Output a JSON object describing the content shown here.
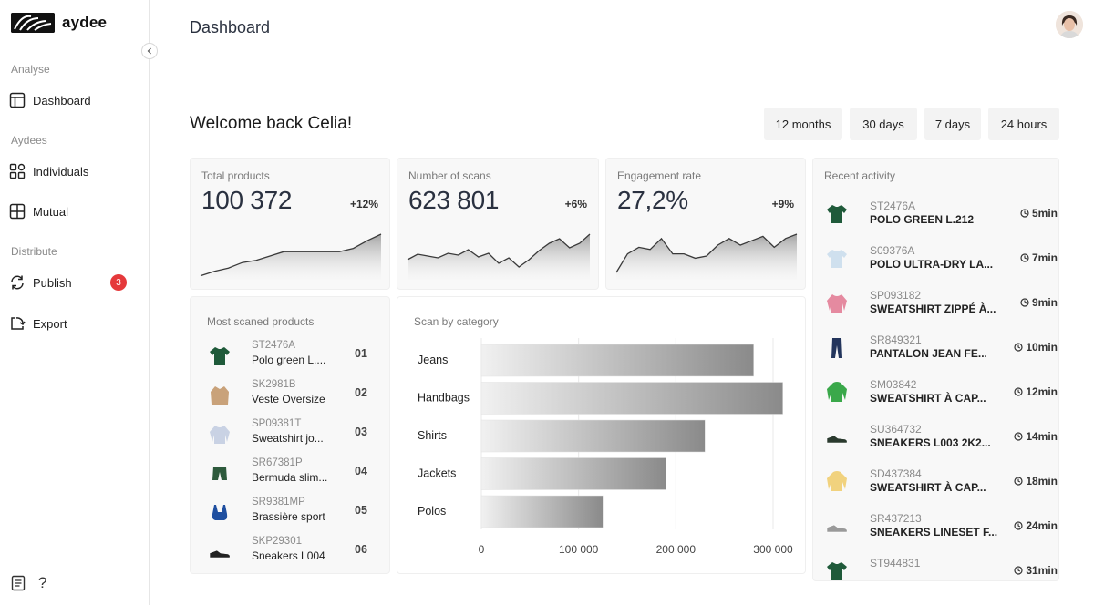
{
  "app": {
    "name": "aydee",
    "page_title": "Dashboard",
    "colors": {
      "accent": "#e5393b",
      "text": "#1f1f1f",
      "card_bg": "#f8f8f8",
      "bar_dark": "#8e8e8e",
      "bar_light": "#ededed"
    }
  },
  "sidebar": {
    "sections": [
      {
        "label": "Analyse",
        "items": [
          {
            "label": "Dashboard",
            "icon": "layout-icon",
            "active": true
          }
        ]
      },
      {
        "label": "Aydees",
        "items": [
          {
            "label": "Individuals",
            "icon": "grid-icon"
          },
          {
            "label": "Mutual",
            "icon": "window-icon"
          }
        ]
      },
      {
        "label": "Distribute",
        "items": [
          {
            "label": "Publish",
            "icon": "refresh-icon",
            "badge": "3"
          },
          {
            "label": "Export",
            "icon": "export-icon"
          }
        ]
      }
    ],
    "bottom_icons": [
      "document-icon",
      "help-icon"
    ],
    "help_glyph": "?"
  },
  "main": {
    "welcome": "Welcome back Celia!",
    "ranges": [
      "12 months",
      "30 days",
      "7 days",
      "24 hours"
    ],
    "kpis": [
      {
        "label": "Total products",
        "value": "100 372",
        "delta": "+12%"
      },
      {
        "label": "Number of scans",
        "value": "623 801",
        "delta": "+6%"
      },
      {
        "label": "Engagement rate",
        "value": "27,2%",
        "delta": "+9%"
      }
    ],
    "most_scanned": {
      "title": "Most scaned products",
      "items": [
        {
          "code": "ST2476A",
          "name": "Polo green L....",
          "rank": "01",
          "icon": "polo-icon",
          "color": "#1f5a3a"
        },
        {
          "code": "SK2981B",
          "name": "Veste Oversize",
          "rank": "02",
          "icon": "jacket-icon",
          "color": "#c9a27a"
        },
        {
          "code": "SP09381T",
          "name": "Sweatshirt jo...",
          "rank": "03",
          "icon": "sweatshirt-icon",
          "color": "#c9d2e4"
        },
        {
          "code": "SR67381P",
          "name": "Bermuda slim...",
          "rank": "04",
          "icon": "shorts-icon",
          "color": "#2d5a3c"
        },
        {
          "code": "SR9381MP",
          "name": "Brassière sport",
          "rank": "05",
          "icon": "bra-icon",
          "color": "#1f4fa0"
        },
        {
          "code": "SKP29301",
          "name": "Sneakers L004",
          "rank": "06",
          "icon": "sneaker-icon",
          "color": "#222222"
        }
      ]
    },
    "scan_by_category": {
      "title": "Scan by category",
      "ticks": [
        "0",
        "100 000",
        "200 000",
        "300 000"
      ]
    },
    "recent_activity": {
      "title": "Recent activity",
      "items": [
        {
          "code": "ST2476A",
          "name": "POLO GREEN L.212",
          "time": "5min",
          "icon": "polo-icon",
          "color": "#1f5a3a"
        },
        {
          "code": "S09376A",
          "name": "POLO ULTRA-DRY LA...",
          "time": "7min",
          "icon": "polo-icon",
          "color": "#cfe0ee"
        },
        {
          "code": "SP093182",
          "name": "SWEATSHIRT ZIPPÉ À...",
          "time": "9min",
          "icon": "sweatshirt-icon",
          "color": "#e58aa0"
        },
        {
          "code": "SR849321",
          "name": "PANTALON JEAN FE...",
          "time": "10min",
          "icon": "jeans-icon",
          "color": "#23355c"
        },
        {
          "code": "SM03842",
          "name": "SWEATSHIRT À CAP...",
          "time": "12min",
          "icon": "hoodie-icon",
          "color": "#3aa84a"
        },
        {
          "code": "SU364732",
          "name": "SNEAKERS L003 2K2...",
          "time": "14min",
          "icon": "sneaker-icon",
          "color": "#2a3a2e"
        },
        {
          "code": "SD437384",
          "name": "SWEATSHIRT À CAP...",
          "time": "18min",
          "icon": "hoodie-icon",
          "color": "#f1d27e"
        },
        {
          "code": "SR437213",
          "name": "SNEAKERS LINESET F...",
          "time": "24min",
          "icon": "sneaker-icon",
          "color": "#9a9a9a"
        },
        {
          "code": "ST944831",
          "name": "",
          "time": "31min",
          "icon": "polo-icon",
          "color": "#1f5a3a"
        }
      ]
    }
  },
  "chart_data": [
    {
      "type": "area",
      "title": "Total products",
      "values": [
        2,
        6,
        9,
        14,
        16,
        20,
        24,
        24,
        24,
        24,
        24,
        27,
        34,
        40
      ]
    },
    {
      "type": "area",
      "title": "Number of scans",
      "values": [
        20,
        26,
        24,
        22,
        27,
        25,
        31,
        23,
        27,
        16,
        22,
        12,
        20,
        30,
        38,
        43,
        33,
        38,
        48
      ]
    },
    {
      "type": "area",
      "title": "Engagement rate",
      "values": [
        5,
        22,
        28,
        26,
        36,
        22,
        22,
        18,
        20,
        30,
        36,
        30,
        34,
        38,
        28,
        36,
        40
      ]
    },
    {
      "type": "bar",
      "orientation": "horizontal",
      "title": "Scan by category",
      "categories": [
        "Jeans",
        "Handbags",
        "Shirts",
        "Jackets",
        "Polos"
      ],
      "values": [
        280000,
        310000,
        230000,
        190000,
        125000
      ],
      "xlim": [
        0,
        300000
      ],
      "grid": true
    }
  ]
}
